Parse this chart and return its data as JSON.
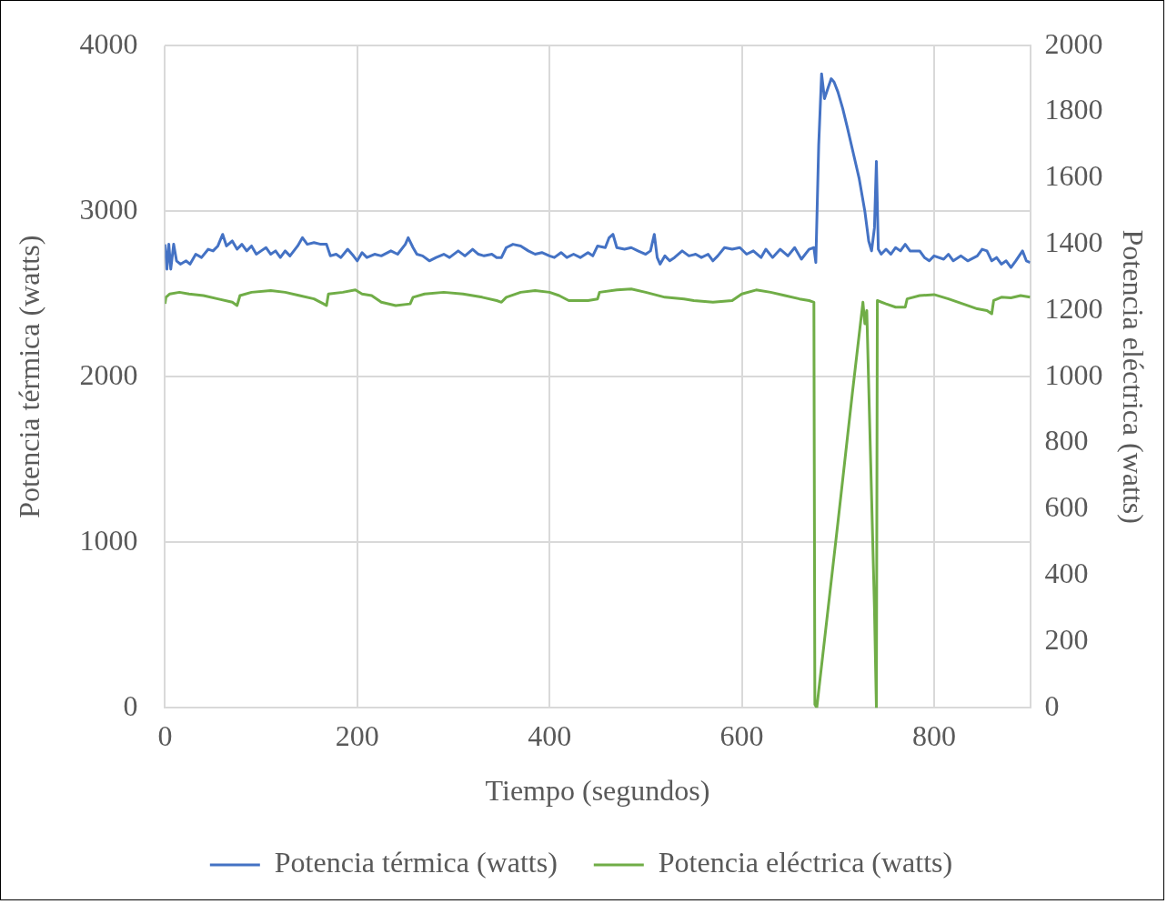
{
  "chart_data": {
    "type": "line",
    "xlabel": "Tiempo (segundos)",
    "ylabel": "Potencia térmica (watts)",
    "y2label": "Potencia eléctrica (watts)",
    "xlim": [
      0,
      900
    ],
    "xticks": [
      0,
      200,
      400,
      600,
      800
    ],
    "ylim": [
      0,
      4000
    ],
    "yticks": [
      0,
      1000,
      2000,
      3000,
      4000
    ],
    "y2lim": [
      0,
      2000
    ],
    "y2ticks": [
      0,
      200,
      400,
      600,
      800,
      1000,
      1200,
      1400,
      1600,
      1800,
      2000
    ],
    "grid": true,
    "legend": "bottom",
    "marker": "none",
    "line_style": "solid",
    "series": [
      {
        "name": "Potencia térmica (watts)",
        "color": "#4472c4",
        "x": [
          0,
          2,
          4,
          6,
          9,
          12,
          16,
          22,
          26,
          32,
          38,
          45,
          50,
          55,
          60,
          64,
          70,
          75,
          80,
          85,
          90,
          95,
          100,
          105,
          110,
          115,
          120,
          125,
          130,
          138,
          143,
          148,
          155,
          162,
          168,
          172,
          178,
          183,
          190,
          196,
          200,
          205,
          210,
          218,
          225,
          235,
          242,
          250,
          253,
          258,
          262,
          268,
          275,
          282,
          290,
          296,
          305,
          312,
          320,
          326,
          332,
          340,
          345,
          350,
          355,
          362,
          370,
          378,
          385,
          392,
          400,
          405,
          412,
          418,
          425,
          432,
          440,
          445,
          450,
          458,
          462,
          466,
          470,
          478,
          485,
          492,
          500,
          505,
          509,
          512,
          515,
          520,
          525,
          530,
          538,
          545,
          552,
          558,
          565,
          570,
          575,
          582,
          590,
          598,
          605,
          612,
          620,
          625,
          632,
          640,
          648,
          655,
          662,
          670,
          675,
          677,
          680,
          683,
          686,
          690,
          693,
          696,
          700,
          705,
          710,
          716,
          722,
          728,
          732,
          735,
          738,
          740,
          742,
          745,
          750,
          755,
          760,
          765,
          770,
          775,
          785,
          790,
          795,
          800,
          810,
          815,
          820,
          828,
          835,
          845,
          850,
          855,
          860,
          865,
          870,
          875,
          880,
          885,
          892,
          896,
          900
        ],
        "values": [
          2800,
          2650,
          2800,
          2650,
          2800,
          2700,
          2680,
          2700,
          2680,
          2740,
          2720,
          2770,
          2760,
          2790,
          2860,
          2790,
          2820,
          2770,
          2800,
          2760,
          2790,
          2740,
          2760,
          2780,
          2740,
          2760,
          2720,
          2760,
          2730,
          2790,
          2840,
          2800,
          2810,
          2800,
          2800,
          2730,
          2740,
          2720,
          2770,
          2730,
          2700,
          2750,
          2720,
          2740,
          2730,
          2760,
          2740,
          2800,
          2840,
          2780,
          2740,
          2730,
          2700,
          2720,
          2740,
          2720,
          2760,
          2730,
          2770,
          2740,
          2730,
          2740,
          2720,
          2720,
          2780,
          2800,
          2790,
          2760,
          2740,
          2750,
          2730,
          2720,
          2750,
          2720,
          2740,
          2720,
          2750,
          2730,
          2790,
          2780,
          2840,
          2860,
          2780,
          2770,
          2780,
          2760,
          2740,
          2760,
          2860,
          2720,
          2680,
          2730,
          2700,
          2720,
          2760,
          2730,
          2740,
          2720,
          2740,
          2700,
          2730,
          2780,
          2770,
          2780,
          2740,
          2760,
          2720,
          2770,
          2720,
          2770,
          2730,
          2780,
          2710,
          2770,
          2780,
          2690,
          3400,
          3830,
          3680,
          3750,
          3800,
          3780,
          3720,
          3620,
          3500,
          3350,
          3200,
          3000,
          2820,
          2760,
          2900,
          3300,
          2770,
          2740,
          2770,
          2740,
          2780,
          2760,
          2800,
          2760,
          2760,
          2720,
          2700,
          2730,
          2710,
          2740,
          2700,
          2730,
          2700,
          2730,
          2770,
          2760,
          2700,
          2720,
          2680,
          2700,
          2660,
          2700,
          2760,
          2700,
          2690
        ]
      },
      {
        "name": "Potencia eléctrica (watts)",
        "color": "#70ad47",
        "axis": "y2",
        "x": [
          0,
          1,
          5,
          15,
          25,
          40,
          55,
          70,
          75,
          78,
          90,
          110,
          125,
          140,
          155,
          165,
          168,
          170,
          185,
          198,
          205,
          215,
          225,
          240,
          255,
          258,
          270,
          290,
          310,
          330,
          345,
          350,
          355,
          370,
          385,
          400,
          410,
          420,
          440,
          450,
          452,
          470,
          485,
          500,
          520,
          540,
          550,
          570,
          590,
          600,
          615,
          630,
          645,
          660,
          670,
          675,
          676,
          678,
          700,
          715,
          726,
          728,
          730,
          738,
          740,
          741,
          750,
          760,
          770,
          772,
          785,
          800,
          815,
          830,
          845,
          855,
          860,
          862,
          870,
          880,
          890,
          900
        ],
        "values": [
          1220,
          1240,
          1250,
          1255,
          1250,
          1245,
          1235,
          1225,
          1215,
          1245,
          1255,
          1260,
          1255,
          1245,
          1235,
          1220,
          1215,
          1250,
          1255,
          1262,
          1250,
          1245,
          1225,
          1215,
          1220,
          1240,
          1250,
          1255,
          1250,
          1240,
          1230,
          1225,
          1240,
          1255,
          1260,
          1255,
          1245,
          1230,
          1230,
          1235,
          1255,
          1262,
          1265,
          1255,
          1240,
          1235,
          1230,
          1225,
          1230,
          1250,
          1262,
          1255,
          1245,
          1235,
          1230,
          1225,
          10,
          0,
          560,
          950,
          1225,
          1160,
          1200,
          300,
          0,
          1230,
          1220,
          1210,
          1210,
          1235,
          1245,
          1248,
          1235,
          1220,
          1205,
          1200,
          1190,
          1230,
          1240,
          1238,
          1245,
          1240
        ]
      }
    ]
  }
}
